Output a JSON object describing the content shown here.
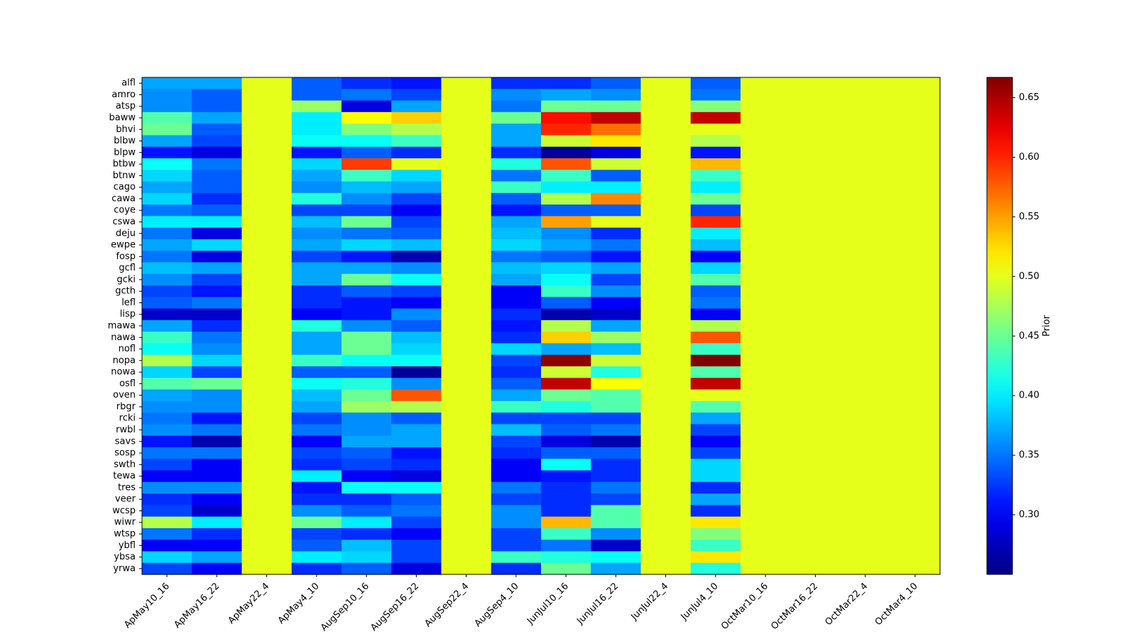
{
  "chart_data": {
    "type": "heatmap",
    "title": "",
    "xlabel": "",
    "ylabel": "",
    "colormap": "jet",
    "colorbar_label": "Prior",
    "vmin": 0.25,
    "vmax": 0.667,
    "colorbar_ticks": [
      "0.30",
      "0.35",
      "0.40",
      "0.45",
      "0.50",
      "0.55",
      "0.60",
      "0.65"
    ],
    "columns": [
      "ApMay10_16",
      "ApMay16_22",
      "ApMay22_4",
      "ApMay4_10",
      "AugSep10_16",
      "AugSep16_22",
      "AugSep22_4",
      "AugSep4_10",
      "JunJul10_16",
      "JunJul16_22",
      "JunJul22_4",
      "JunJul4_10",
      "OctMar10_16",
      "OctMar16_22",
      "OctMar22_4",
      "OctMar4_10"
    ],
    "rows": [
      "alfl",
      "amro",
      "atsp",
      "baww",
      "bhvi",
      "blbw",
      "blpw",
      "btbw",
      "btnw",
      "cago",
      "cawa",
      "coye",
      "cswa",
      "deju",
      "ewpe",
      "fosp",
      "gcfl",
      "gcki",
      "gcth",
      "lefl",
      "lisp",
      "mawa",
      "nawa",
      "nofl",
      "nopa",
      "nowa",
      "osfl",
      "oven",
      "rbgr",
      "rcki",
      "rwbl",
      "savs",
      "sosp",
      "swth",
      "tewa",
      "tres",
      "veer",
      "wcsp",
      "wiwr",
      "wtsp",
      "ybfl",
      "ybsa",
      "yrwa"
    ],
    "values": [
      [
        0.37,
        0.37,
        0.5,
        0.34,
        0.32,
        0.31,
        0.5,
        0.32,
        0.32,
        0.34,
        0.5,
        0.34,
        0.5,
        0.5,
        0.5,
        0.5
      ],
      [
        0.36,
        0.34,
        0.5,
        0.34,
        0.35,
        0.33,
        0.5,
        0.36,
        0.37,
        0.36,
        0.5,
        0.35,
        0.5,
        0.5,
        0.5,
        0.5
      ],
      [
        0.36,
        0.34,
        0.5,
        0.47,
        0.29,
        0.37,
        0.5,
        0.35,
        0.45,
        0.45,
        0.5,
        0.46,
        0.5,
        0.5,
        0.5,
        0.5
      ],
      [
        0.44,
        0.37,
        0.5,
        0.4,
        0.51,
        0.53,
        0.5,
        0.45,
        0.61,
        0.64,
        0.5,
        0.64,
        0.5,
        0.5,
        0.5,
        0.5
      ],
      [
        0.45,
        0.34,
        0.5,
        0.4,
        0.46,
        0.48,
        0.5,
        0.37,
        0.6,
        0.57,
        0.5,
        0.5,
        0.5,
        0.5,
        0.5,
        0.5
      ],
      [
        0.37,
        0.33,
        0.5,
        0.41,
        0.41,
        0.43,
        0.5,
        0.37,
        0.49,
        0.52,
        0.5,
        0.48,
        0.5,
        0.5,
        0.5,
        0.5
      ],
      [
        0.31,
        0.29,
        0.5,
        0.31,
        0.34,
        0.32,
        0.5,
        0.32,
        0.26,
        0.29,
        0.5,
        0.31,
        0.5,
        0.5,
        0.5,
        0.5
      ],
      [
        0.41,
        0.35,
        0.5,
        0.39,
        0.59,
        0.5,
        0.5,
        0.42,
        0.58,
        0.49,
        0.5,
        0.54,
        0.5,
        0.5,
        0.5,
        0.5
      ],
      [
        0.39,
        0.34,
        0.5,
        0.37,
        0.43,
        0.39,
        0.5,
        0.35,
        0.43,
        0.34,
        0.5,
        0.43,
        0.5,
        0.5,
        0.5,
        0.5
      ],
      [
        0.37,
        0.34,
        0.5,
        0.36,
        0.38,
        0.37,
        0.5,
        0.43,
        0.4,
        0.4,
        0.5,
        0.4,
        0.5,
        0.5,
        0.5,
        0.5
      ],
      [
        0.39,
        0.32,
        0.5,
        0.42,
        0.36,
        0.33,
        0.5,
        0.34,
        0.48,
        0.56,
        0.5,
        0.45,
        0.5,
        0.5,
        0.5,
        0.5
      ],
      [
        0.35,
        0.34,
        0.5,
        0.33,
        0.33,
        0.3,
        0.5,
        0.31,
        0.34,
        0.34,
        0.5,
        0.33,
        0.5,
        0.5,
        0.5,
        0.5
      ],
      [
        0.4,
        0.4,
        0.5,
        0.38,
        0.45,
        0.33,
        0.5,
        0.37,
        0.55,
        0.5,
        0.5,
        0.6,
        0.5,
        0.5,
        0.5,
        0.5
      ],
      [
        0.35,
        0.29,
        0.5,
        0.36,
        0.35,
        0.34,
        0.5,
        0.38,
        0.36,
        0.32,
        0.5,
        0.4,
        0.5,
        0.5,
        0.5,
        0.5
      ],
      [
        0.37,
        0.39,
        0.5,
        0.37,
        0.39,
        0.38,
        0.5,
        0.39,
        0.37,
        0.35,
        0.5,
        0.38,
        0.5,
        0.5,
        0.5,
        0.5
      ],
      [
        0.35,
        0.29,
        0.5,
        0.33,
        0.31,
        0.27,
        0.5,
        0.35,
        0.34,
        0.31,
        0.5,
        0.3,
        0.5,
        0.5,
        0.5,
        0.5
      ],
      [
        0.38,
        0.37,
        0.5,
        0.37,
        0.37,
        0.36,
        0.5,
        0.38,
        0.39,
        0.37,
        0.5,
        0.39,
        0.5,
        0.5,
        0.5,
        0.5
      ],
      [
        0.36,
        0.33,
        0.5,
        0.37,
        0.45,
        0.41,
        0.5,
        0.37,
        0.41,
        0.33,
        0.5,
        0.44,
        0.5,
        0.5,
        0.5,
        0.5
      ],
      [
        0.33,
        0.31,
        0.5,
        0.32,
        0.34,
        0.33,
        0.5,
        0.3,
        0.43,
        0.36,
        0.5,
        0.34,
        0.5,
        0.5,
        0.5,
        0.5
      ],
      [
        0.34,
        0.35,
        0.5,
        0.32,
        0.31,
        0.3,
        0.5,
        0.3,
        0.34,
        0.3,
        0.5,
        0.35,
        0.5,
        0.5,
        0.5,
        0.5
      ],
      [
        0.28,
        0.28,
        0.5,
        0.3,
        0.31,
        0.36,
        0.5,
        0.32,
        0.27,
        0.28,
        0.5,
        0.3,
        0.5,
        0.5,
        0.5,
        0.5
      ],
      [
        0.37,
        0.32,
        0.5,
        0.42,
        0.36,
        0.34,
        0.5,
        0.31,
        0.48,
        0.37,
        0.5,
        0.48,
        0.5,
        0.5,
        0.5,
        0.5
      ],
      [
        0.43,
        0.35,
        0.5,
        0.37,
        0.45,
        0.38,
        0.5,
        0.32,
        0.53,
        0.47,
        0.5,
        0.58,
        0.5,
        0.5,
        0.5,
        0.5
      ],
      [
        0.41,
        0.36,
        0.5,
        0.37,
        0.45,
        0.39,
        0.5,
        0.39,
        0.37,
        0.38,
        0.5,
        0.43,
        0.5,
        0.5,
        0.5,
        0.5
      ],
      [
        0.48,
        0.39,
        0.5,
        0.43,
        0.41,
        0.41,
        0.5,
        0.33,
        0.66,
        0.49,
        0.5,
        0.67,
        0.5,
        0.5,
        0.5,
        0.5
      ],
      [
        0.39,
        0.33,
        0.5,
        0.34,
        0.34,
        0.26,
        0.5,
        0.32,
        0.49,
        0.42,
        0.5,
        0.44,
        0.5,
        0.5,
        0.5,
        0.5
      ],
      [
        0.44,
        0.45,
        0.5,
        0.41,
        0.42,
        0.36,
        0.5,
        0.34,
        0.64,
        0.51,
        0.5,
        0.64,
        0.5,
        0.5,
        0.5,
        0.5
      ],
      [
        0.37,
        0.36,
        0.5,
        0.38,
        0.45,
        0.58,
        0.5,
        0.37,
        0.45,
        0.44,
        0.5,
        0.5,
        0.5,
        0.5,
        0.5,
        0.5
      ],
      [
        0.36,
        0.36,
        0.5,
        0.37,
        0.47,
        0.48,
        0.5,
        0.43,
        0.42,
        0.44,
        0.5,
        0.44,
        0.5,
        0.5,
        0.5,
        0.5
      ],
      [
        0.35,
        0.31,
        0.5,
        0.33,
        0.36,
        0.34,
        0.5,
        0.33,
        0.33,
        0.33,
        0.5,
        0.37,
        0.5,
        0.5,
        0.5,
        0.5
      ],
      [
        0.36,
        0.35,
        0.5,
        0.35,
        0.36,
        0.37,
        0.5,
        0.38,
        0.34,
        0.35,
        0.5,
        0.33,
        0.5,
        0.5,
        0.5,
        0.5
      ],
      [
        0.31,
        0.27,
        0.5,
        0.3,
        0.37,
        0.37,
        0.5,
        0.33,
        0.29,
        0.27,
        0.5,
        0.3,
        0.5,
        0.5,
        0.5,
        0.5
      ],
      [
        0.35,
        0.35,
        0.5,
        0.33,
        0.34,
        0.31,
        0.5,
        0.32,
        0.34,
        0.34,
        0.5,
        0.33,
        0.5,
        0.5,
        0.5,
        0.5
      ],
      [
        0.33,
        0.3,
        0.5,
        0.32,
        0.33,
        0.32,
        0.5,
        0.3,
        0.41,
        0.32,
        0.5,
        0.39,
        0.5,
        0.5,
        0.5,
        0.5
      ],
      [
        0.3,
        0.3,
        0.5,
        0.4,
        0.3,
        0.29,
        0.5,
        0.3,
        0.31,
        0.32,
        0.5,
        0.39,
        0.5,
        0.5,
        0.5,
        0.5
      ],
      [
        0.36,
        0.36,
        0.5,
        0.31,
        0.41,
        0.41,
        0.5,
        0.35,
        0.32,
        0.35,
        0.5,
        0.32,
        0.5,
        0.5,
        0.5,
        0.5
      ],
      [
        0.32,
        0.3,
        0.5,
        0.32,
        0.32,
        0.34,
        0.5,
        0.33,
        0.32,
        0.33,
        0.5,
        0.37,
        0.5,
        0.5,
        0.5,
        0.5
      ],
      [
        0.33,
        0.28,
        0.5,
        0.36,
        0.34,
        0.35,
        0.5,
        0.36,
        0.32,
        0.44,
        0.5,
        0.32,
        0.5,
        0.5,
        0.5,
        0.5
      ],
      [
        0.48,
        0.4,
        0.5,
        0.45,
        0.4,
        0.33,
        0.5,
        0.36,
        0.54,
        0.44,
        0.5,
        0.52,
        0.5,
        0.5,
        0.5,
        0.5
      ],
      [
        0.35,
        0.32,
        0.5,
        0.33,
        0.32,
        0.3,
        0.5,
        0.33,
        0.43,
        0.36,
        0.5,
        0.46,
        0.5,
        0.5,
        0.5,
        0.5
      ],
      [
        0.3,
        0.3,
        0.5,
        0.34,
        0.38,
        0.33,
        0.5,
        0.33,
        0.35,
        0.28,
        0.5,
        0.43,
        0.5,
        0.5,
        0.5,
        0.5
      ],
      [
        0.39,
        0.37,
        0.5,
        0.4,
        0.39,
        0.33,
        0.5,
        0.43,
        0.42,
        0.41,
        0.5,
        0.52,
        0.5,
        0.5,
        0.5,
        0.5
      ],
      [
        0.33,
        0.3,
        0.5,
        0.32,
        0.34,
        0.29,
        0.5,
        0.32,
        0.45,
        0.37,
        0.5,
        0.42,
        0.5,
        0.5,
        0.5,
        0.5
      ]
    ]
  }
}
